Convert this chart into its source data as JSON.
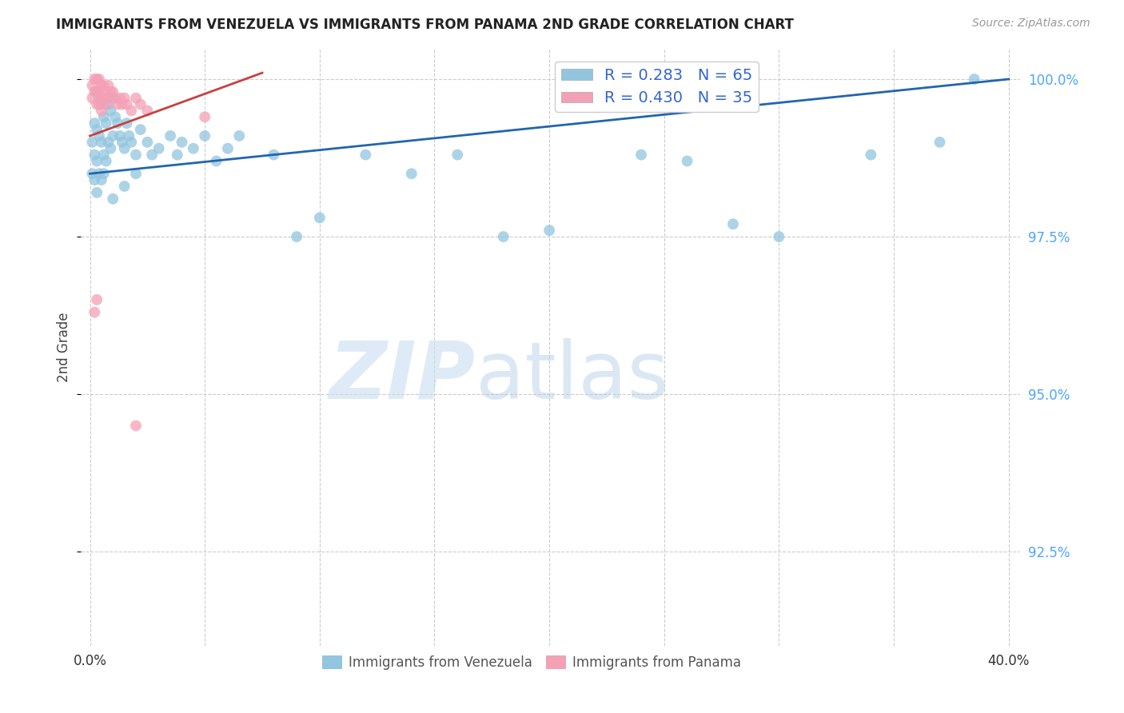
{
  "title": "IMMIGRANTS FROM VENEZUELA VS IMMIGRANTS FROM PANAMA 2ND GRADE CORRELATION CHART",
  "source": "Source: ZipAtlas.com",
  "ylabel": "2nd Grade",
  "ylabel_right_ticks": [
    "100.0%",
    "97.5%",
    "95.0%",
    "92.5%"
  ],
  "ylabel_right_vals": [
    1.0,
    0.975,
    0.95,
    0.925
  ],
  "xlim": [
    0.0,
    0.4
  ],
  "ylim": [
    0.91,
    1.005
  ],
  "legend1_label": "R = 0.283   N = 65",
  "legend2_label": "R = 0.430   N = 35",
  "color_blue": "#92c5de",
  "color_pink": "#f4a0b5",
  "line_color_blue": "#2166ac",
  "line_color_pink": "#c94040",
  "background_color": "#ffffff",
  "grid_color": "#cccccc",
  "watermark_zip": "ZIP",
  "watermark_atlas": "atlas",
  "ven_line_x0": 0.0,
  "ven_line_y0": 0.985,
  "ven_line_x1": 0.4,
  "ven_line_y1": 1.0,
  "pan_line_x0": 0.0,
  "pan_line_y0": 0.991,
  "pan_line_x1": 0.075,
  "pan_line_y1": 1.001,
  "venezuela_x": [
    0.001,
    0.001,
    0.002,
    0.002,
    0.002,
    0.003,
    0.003,
    0.003,
    0.004,
    0.004,
    0.004,
    0.005,
    0.005,
    0.005,
    0.006,
    0.006,
    0.007,
    0.007,
    0.008,
    0.008,
    0.009,
    0.009,
    0.01,
    0.01,
    0.011,
    0.012,
    0.013,
    0.014,
    0.015,
    0.016,
    0.017,
    0.018,
    0.02,
    0.022,
    0.025,
    0.027,
    0.03,
    0.035,
    0.038,
    0.04,
    0.045,
    0.05,
    0.055,
    0.06,
    0.065,
    0.08,
    0.09,
    0.1,
    0.12,
    0.14,
    0.16,
    0.18,
    0.2,
    0.24,
    0.26,
    0.28,
    0.3,
    0.34,
    0.37,
    0.385,
    0.003,
    0.006,
    0.01,
    0.015,
    0.02
  ],
  "venezuela_y": [
    0.99,
    0.985,
    0.993,
    0.988,
    0.984,
    0.998,
    0.992,
    0.987,
    0.997,
    0.991,
    0.985,
    0.996,
    0.99,
    0.984,
    0.994,
    0.988,
    0.993,
    0.987,
    0.996,
    0.99,
    0.995,
    0.989,
    0.997,
    0.991,
    0.994,
    0.993,
    0.991,
    0.99,
    0.989,
    0.993,
    0.991,
    0.99,
    0.988,
    0.992,
    0.99,
    0.988,
    0.989,
    0.991,
    0.988,
    0.99,
    0.989,
    0.991,
    0.987,
    0.989,
    0.991,
    0.988,
    0.975,
    0.978,
    0.988,
    0.985,
    0.988,
    0.975,
    0.976,
    0.988,
    0.987,
    0.977,
    0.975,
    0.988,
    0.99,
    1.0,
    0.982,
    0.985,
    0.981,
    0.983,
    0.985
  ],
  "panama_x": [
    0.001,
    0.001,
    0.002,
    0.002,
    0.003,
    0.003,
    0.003,
    0.004,
    0.004,
    0.004,
    0.005,
    0.005,
    0.005,
    0.006,
    0.006,
    0.007,
    0.007,
    0.008,
    0.008,
    0.009,
    0.01,
    0.011,
    0.012,
    0.013,
    0.014,
    0.015,
    0.016,
    0.018,
    0.02,
    0.022,
    0.025,
    0.002,
    0.003,
    0.02,
    0.05
  ],
  "panama_y": [
    0.999,
    0.997,
    1.0,
    0.998,
    1.0,
    0.998,
    0.996,
    1.0,
    0.998,
    0.996,
    0.999,
    0.997,
    0.995,
    0.999,
    0.997,
    0.998,
    0.996,
    0.999,
    0.997,
    0.998,
    0.998,
    0.997,
    0.996,
    0.997,
    0.996,
    0.997,
    0.996,
    0.995,
    0.997,
    0.996,
    0.995,
    0.963,
    0.965,
    0.945,
    0.994
  ]
}
